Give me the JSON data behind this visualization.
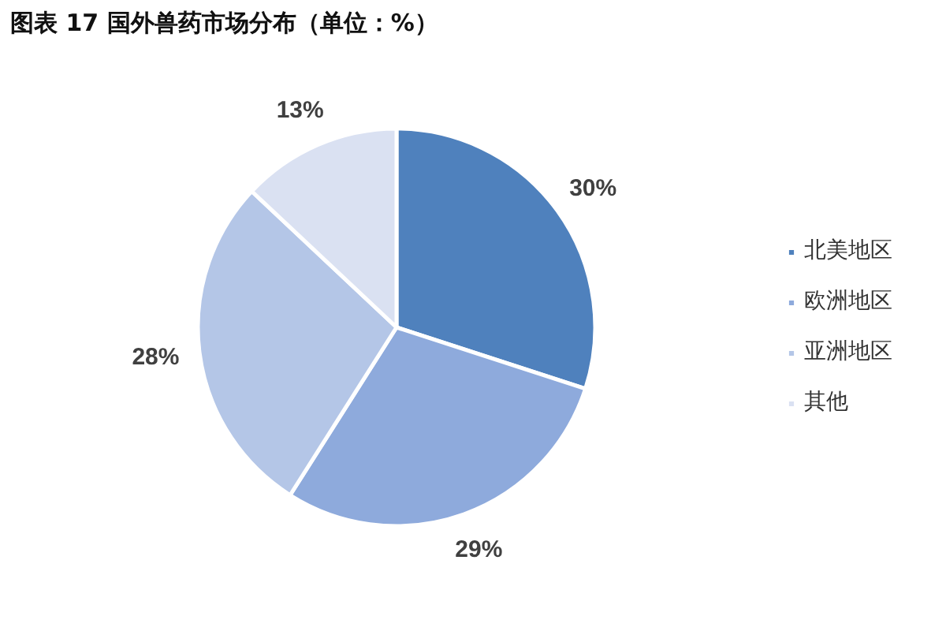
{
  "chart_data": {
    "type": "pie",
    "title": "图表 17 国外兽药市场分布（单位：%）",
    "categories": [
      "北美地区",
      "欧洲地区",
      "亚洲地区",
      "其他"
    ],
    "values": [
      30,
      29,
      28,
      13
    ],
    "colors": [
      "#4f81bd",
      "#8eaadc",
      "#b4c6e7",
      "#dae1f2"
    ],
    "value_labels": [
      "30%",
      "29%",
      "28%",
      "13%"
    ],
    "legend": "right"
  }
}
